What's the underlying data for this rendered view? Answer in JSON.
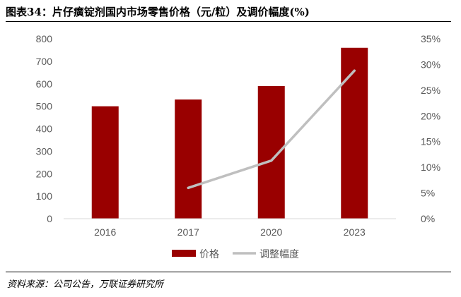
{
  "title": "图表34：片仔癀锭剂国内市场零售价格（元/粒）及调价幅度(%)",
  "source": "资料来源：公司公告，万联证券研究所",
  "colors": {
    "bar": "#990000",
    "line": "#bfbfbf",
    "axis": "#d9d9d9",
    "text": "#595959"
  },
  "chart_data": {
    "type": "bar",
    "categories": [
      "2016",
      "2017",
      "2020",
      "2023"
    ],
    "series": [
      {
        "name": "价格",
        "type": "bar",
        "axis": "left",
        "values": [
          500,
          530,
          590,
          760
        ]
      },
      {
        "name": "调整幅度",
        "type": "line",
        "axis": "right",
        "values": [
          null,
          6.0,
          11.3,
          28.8
        ]
      }
    ],
    "y_left": {
      "lim": [
        0,
        800
      ],
      "ticks": [
        "0",
        "100",
        "200",
        "300",
        "400",
        "500",
        "600",
        "700",
        "800"
      ]
    },
    "y_right": {
      "lim": [
        0,
        35
      ],
      "ticks": [
        "0%",
        "5%",
        "10%",
        "15%",
        "20%",
        "25%",
        "30%",
        "35%"
      ]
    },
    "legend": "bottom-center",
    "grid": false
  }
}
